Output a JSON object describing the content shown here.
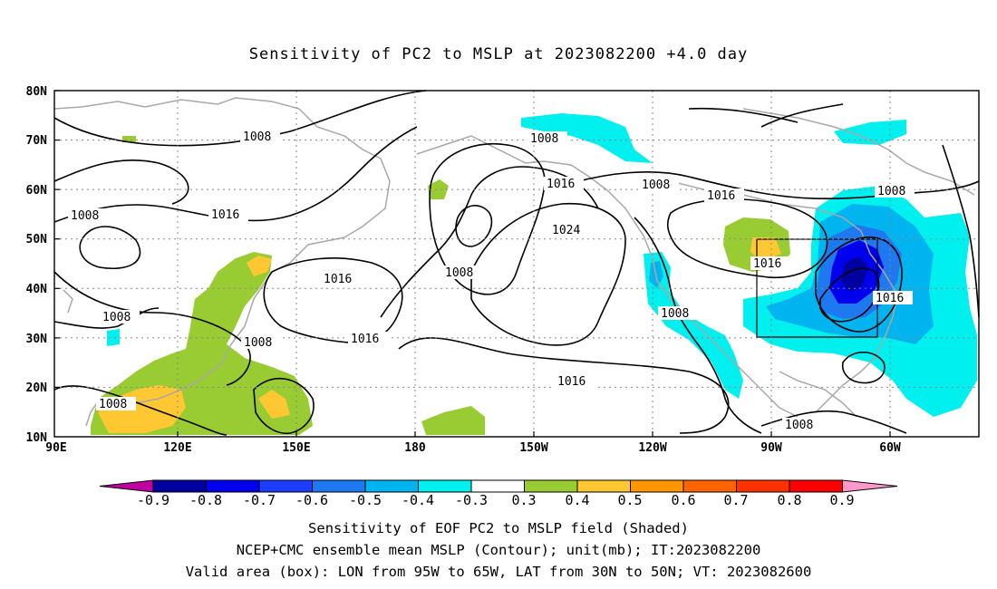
{
  "title": "Sensitivity of PC2 to MSLP at 2023082200 +4.0 day",
  "map": {
    "lat_labels": [
      "80N",
      "70N",
      "60N",
      "50N",
      "40N",
      "30N",
      "20N",
      "10N"
    ],
    "lon_labels": [
      "90E",
      "120E",
      "150E",
      "180",
      "150W",
      "120W",
      "90W",
      "60W"
    ],
    "extent": {
      "lon_west": "90E",
      "lon_east": "45W",
      "lat_south": "10N",
      "lat_north": "80N"
    },
    "grid": "dotted every 30 deg lon / 10 deg lat",
    "contour_color": "#000000",
    "coastline_color": "#a8a8a8",
    "contour_labels": [
      "1008",
      "1008",
      "1008",
      "1008",
      "1008",
      "1008",
      "1008",
      "1008",
      "1008",
      "1016",
      "1016",
      "1016",
      "1016",
      "1016",
      "1016",
      "1016",
      "1016",
      "1024"
    ],
    "valid_box": {
      "lon_from": "95W",
      "lon_to": "65W",
      "lat_from": "30N",
      "lat_to": "50N"
    }
  },
  "colorbar": {
    "labels": [
      "-0.9",
      "-0.8",
      "-0.7",
      "-0.6",
      "-0.5",
      "-0.4",
      "-0.3",
      "0.3",
      "0.4",
      "0.5",
      "0.6",
      "0.7",
      "0.8",
      "0.9"
    ],
    "colors": [
      "#0000a0",
      "#0000ee",
      "#1c3cff",
      "#1e78f0",
      "#00b4f0",
      "#00f0f0",
      "#ffffff",
      "#98cc32",
      "#ffc832",
      "#ff9600",
      "#ff6400",
      "#ff3200",
      "#ff0000"
    ],
    "low_end_color": "#c000a0",
    "high_end_color": "#ff99cc"
  },
  "captions": [
    "Sensitivity of EOF PC2 to MSLP field (Shaded)",
    "NCEP+CMC ensemble mean MSLP (Contour); unit(mb); IT:2023082200",
    "Valid area (box): LON from 95W to 65W, LAT from 30N to 50N; VT: 2023082600"
  ]
}
